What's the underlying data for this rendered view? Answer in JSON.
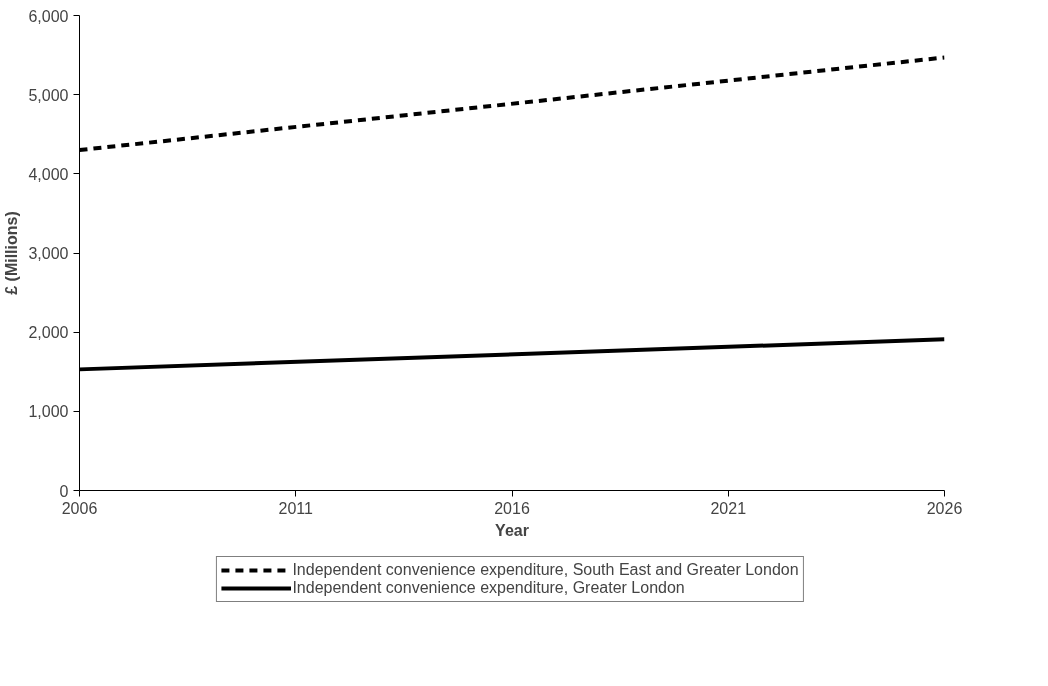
{
  "chart_data": {
    "type": "line",
    "xlabel": "Year",
    "ylabel": "£ (Millions)",
    "x": [
      2006,
      2026
    ],
    "series": [
      {
        "name": "Independent convenience expenditure, South East and Greater London",
        "color": "#000000",
        "values": [
          4300,
          5470
        ],
        "line_style": "dashed"
      },
      {
        "name": "Independent convenience expenditure, Greater London",
        "color": "#000000",
        "values": [
          1530,
          1910
        ],
        "line_style": "solid"
      }
    ],
    "xlim": [
      2006,
      2026
    ],
    "xticks": [
      2006,
      2011,
      2016,
      2021,
      2026
    ],
    "ylim": [
      0,
      6000
    ],
    "yticks": [
      {
        "value": 0,
        "label": "0"
      },
      {
        "value": 1000,
        "label": "1,000"
      },
      {
        "value": 2000,
        "label": "2,000"
      },
      {
        "value": 3000,
        "label": "3,000"
      },
      {
        "value": 4000,
        "label": "4,000"
      },
      {
        "value": 5000,
        "label": "5,000"
      },
      {
        "value": 6000,
        "label": "6,000"
      }
    ],
    "grid": false,
    "legend": "bottom",
    "marker": "none"
  }
}
